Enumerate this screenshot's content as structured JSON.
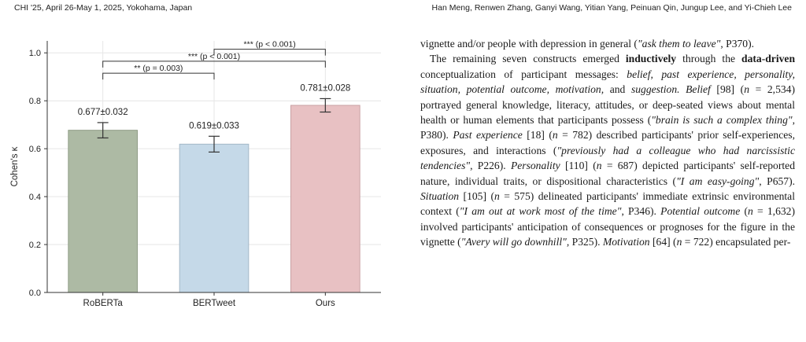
{
  "header": {
    "left": "CHI '25, April 26-May 1, 2025, Yokohama, Japan",
    "right": "Han Meng, Renwen Zhang, Ganyi Wang, Yitian Yang, Peinuan Qin, Jungup Lee, and Yi-Chieh Lee"
  },
  "chart_data": {
    "type": "bar",
    "categories": [
      "RoBERTa",
      "BERTweet",
      "Ours"
    ],
    "values": [
      0.677,
      0.619,
      0.781
    ],
    "errors": [
      0.032,
      0.033,
      0.028
    ],
    "value_labels": [
      "0.677±0.032",
      "0.619±0.033",
      "0.781±0.028"
    ],
    "colors": [
      "#adbaa4",
      "#c5d9e8",
      "#e8c1c3"
    ],
    "edge_colors": [
      "#8e9c85",
      "#a4b8c7",
      "#c9a1a3"
    ],
    "ylabel": "Cohen's κ",
    "ylim": [
      0,
      1.05
    ],
    "yticks": [
      0.0,
      0.2,
      0.4,
      0.6,
      0.8,
      1.0
    ],
    "ytick_labels": [
      "0.0",
      "0.2",
      "0.4",
      "0.6",
      "0.8",
      "1.0"
    ],
    "grid": true,
    "significance": [
      {
        "from": 0,
        "to": 1,
        "label": "** (p = 0.003)",
        "level": 0.915
      },
      {
        "from": 0,
        "to": 2,
        "label": "*** (p < 0.001)",
        "level": 0.965
      },
      {
        "from": 1,
        "to": 2,
        "label": "*** (p < 0.001)",
        "level": 1.015
      }
    ]
  },
  "body": {
    "p1": [
      {
        "t": "vignette and/or people with depression in general ("
      },
      {
        "t": "\"ask them to leave\"",
        "s": "it"
      },
      {
        "t": ", P370)."
      }
    ],
    "p2": [
      {
        "t": "The remaining seven constructs emerged "
      },
      {
        "t": "inductively",
        "s": "bd"
      },
      {
        "t": " through the "
      },
      {
        "t": "data-driven",
        "s": "bd"
      },
      {
        "t": " conceptualization of participant messages: "
      },
      {
        "t": "belief, past experience, personality, situation, potential outcome, motivation,",
        "s": "it"
      },
      {
        "t": " and "
      },
      {
        "t": "suggestion. Belief",
        "s": "it"
      },
      {
        "t": " [98] ("
      },
      {
        "t": "n",
        "s": "it"
      },
      {
        "t": " = 2,534) portrayed general knowledge, literacy, attitudes, or deep-seated views about mental health or human elements that participants possess ("
      },
      {
        "t": "\"brain is such a complex thing\"",
        "s": "it"
      },
      {
        "t": ", P380). "
      },
      {
        "t": "Past experience",
        "s": "it"
      },
      {
        "t": " [18] ("
      },
      {
        "t": "n",
        "s": "it"
      },
      {
        "t": " = 782) described participants' prior self-experiences, exposures, and interactions ("
      },
      {
        "t": "\"previously had a colleague who had narcissistic tendencies\"",
        "s": "it"
      },
      {
        "t": ", P226). "
      },
      {
        "t": "Personality",
        "s": "it"
      },
      {
        "t": " [110] ("
      },
      {
        "t": "n",
        "s": "it"
      },
      {
        "t": " = 687) depicted participants' self-reported nature, individual traits, or dispositional characteristics ("
      },
      {
        "t": "\"I am easy-going\"",
        "s": "it"
      },
      {
        "t": ", P657). "
      },
      {
        "t": "Situation",
        "s": "it"
      },
      {
        "t": " [105] ("
      },
      {
        "t": "n",
        "s": "it"
      },
      {
        "t": " = 575) delineated participants' immediate extrinsic environmental context ("
      },
      {
        "t": "\"I am out at work most of the time\"",
        "s": "it"
      },
      {
        "t": ", P346). "
      },
      {
        "t": "Potential outcome",
        "s": "it"
      },
      {
        "t": " ("
      },
      {
        "t": "n",
        "s": "it"
      },
      {
        "t": " = 1,632) involved participants' anticipation of consequences or prognoses for the figure in the vignette ("
      },
      {
        "t": "\"Avery will go downhill\"",
        "s": "it"
      },
      {
        "t": ", P325). "
      },
      {
        "t": "Motivation",
        "s": "it"
      },
      {
        "t": " [64] ("
      },
      {
        "t": "n",
        "s": "it"
      },
      {
        "t": " = 722) encapsulated per-"
      }
    ]
  }
}
